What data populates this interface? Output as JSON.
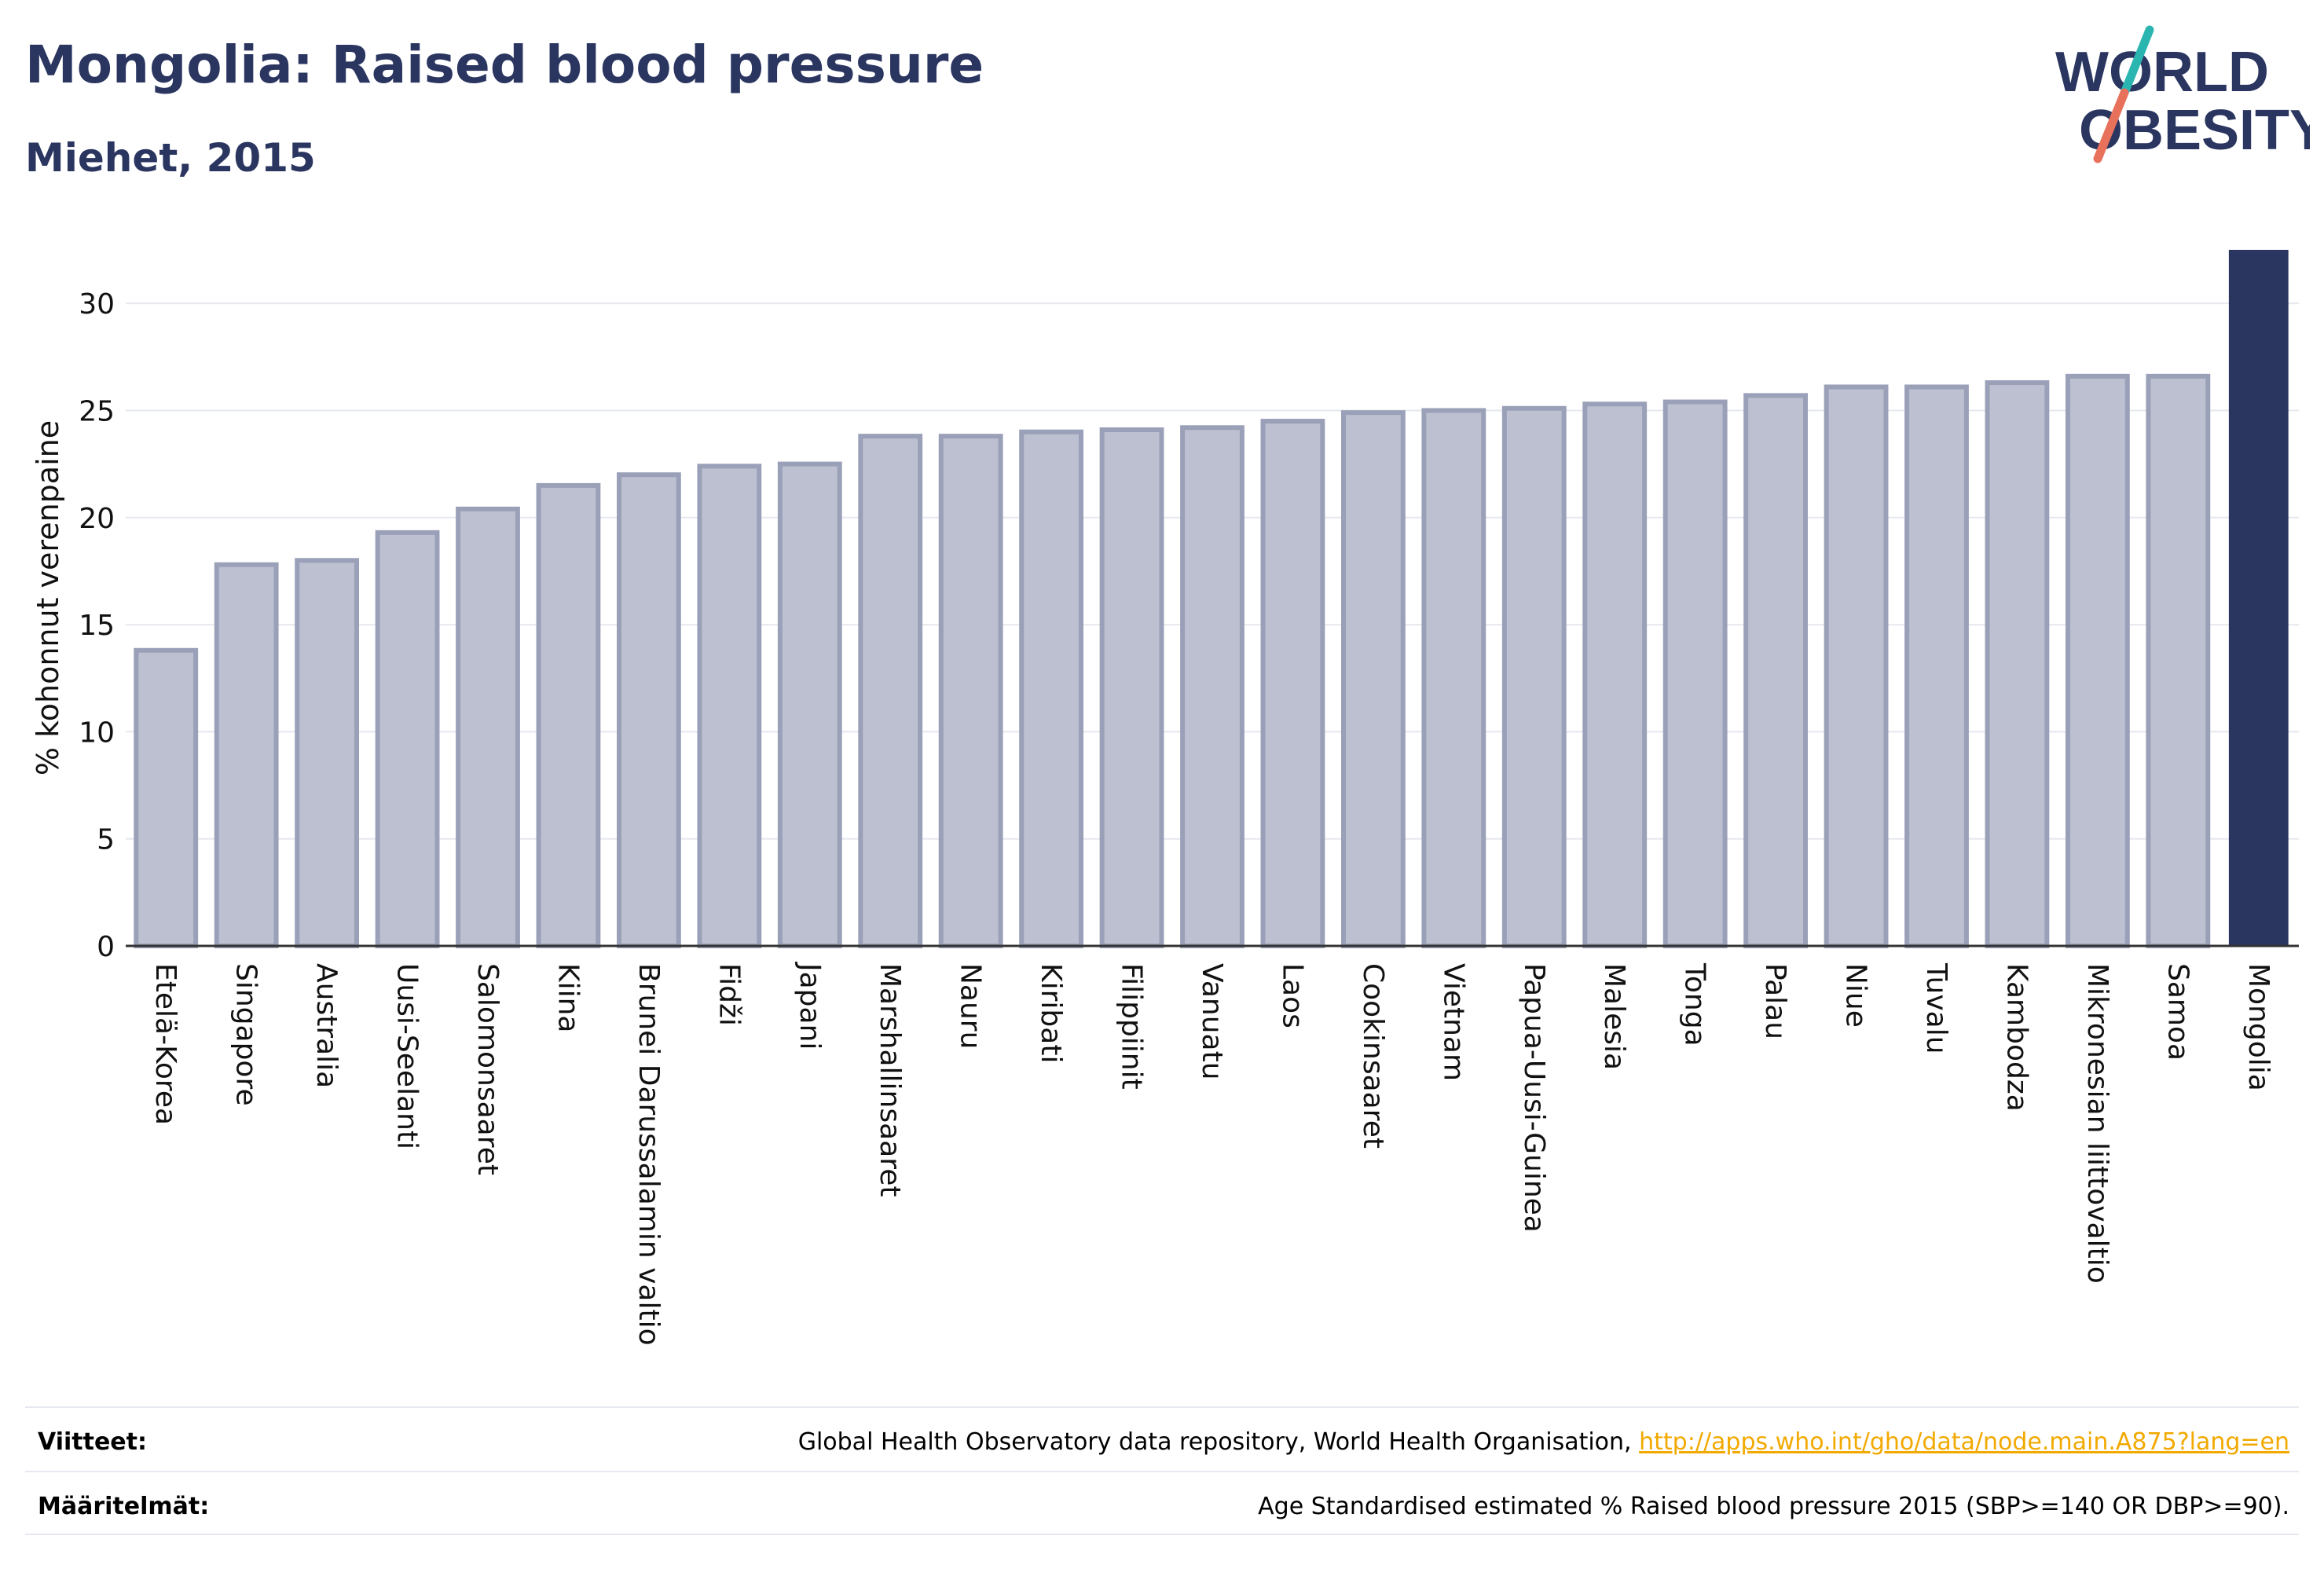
{
  "header": {
    "title": "Mongolia: Raised blood pressure",
    "subtitle": "Miehet, 2015"
  },
  "logo": {
    "line1": "WORLD",
    "line2": "OBESITY",
    "slash_colors": [
      "#2bb5b0",
      "#e8715c"
    ]
  },
  "colors": {
    "bar_default": "#bcc0d0",
    "bar_default_stroke": "#9aa0b8",
    "bar_highlight": "#2a3560",
    "text": "#2a3560",
    "grid": "#e6e8ef",
    "link": "#f2a900"
  },
  "chart_data": {
    "type": "bar",
    "title": "Mongolia: Raised blood pressure",
    "subtitle": "Miehet, 2015",
    "xlabel": "",
    "ylabel": "% kohonnut verenpaine",
    "ylim": [
      0,
      32.5
    ],
    "yticks": [
      0,
      5,
      10,
      15,
      20,
      25,
      30
    ],
    "grid": true,
    "highlight": "Mongolia",
    "categories": [
      "Etelä-Korea",
      "Singapore",
      "Australia",
      "Uusi-Seelanti",
      "Salomonsaaret",
      "Kiina",
      "Brunei Darussalamin valtio",
      "Fidži",
      "Japani",
      "Marshallinsaaret",
      "Nauru",
      "Kiribati",
      "Filippiinit",
      "Vanuatu",
      "Laos",
      "Cookinsaaret",
      "Vietnam",
      "Papua-Uusi-Guinea",
      "Malesia",
      "Tonga",
      "Palau",
      "Niue",
      "Tuvalu",
      "Kambodza",
      "Mikronesian liittovaltio",
      "Samoa",
      "Mongolia"
    ],
    "values": [
      13.8,
      17.8,
      18.0,
      19.3,
      20.4,
      21.5,
      22.0,
      22.4,
      22.5,
      23.8,
      23.8,
      24.0,
      24.1,
      24.2,
      24.5,
      24.9,
      25.0,
      25.1,
      25.3,
      25.4,
      25.7,
      26.1,
      26.1,
      26.3,
      26.6,
      26.6,
      32.5
    ]
  },
  "footer": {
    "sources_label": "Viitteet:",
    "sources_text": "Global Health Observatory data repository, World Health Organisation,",
    "sources_link": "http://apps.who.int/gho/data/node.main.A875?lang=en",
    "definitions_label": "Määritelmät:",
    "definitions_text": "Age Standardised estimated % Raised blood pressure 2015 (SBP>=140 OR DBP>=90)."
  }
}
